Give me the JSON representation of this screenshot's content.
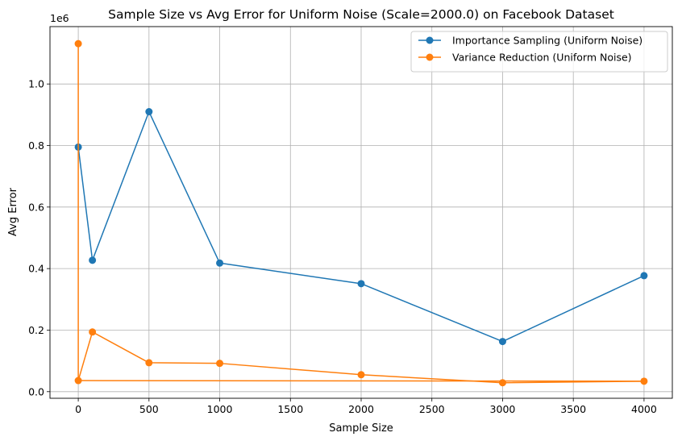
{
  "chart_data": {
    "type": "line",
    "title": "Sample Size vs Avg Error for Uniform Noise (Scale=2000.0) on Facebook Dataset",
    "xlabel": "Sample Size",
    "ylabel": "Avg Error",
    "y_offset_label": "1e6",
    "xlim": [
      -200,
      4200
    ],
    "ylim": [
      -0.0215,
      1.1865
    ],
    "x_ticks": [
      0,
      500,
      1000,
      1500,
      2000,
      2500,
      3000,
      3500,
      4000
    ],
    "x_tick_labels": [
      "0",
      "500",
      "1000",
      "1500",
      "2000",
      "2500",
      "3000",
      "3500",
      "4000"
    ],
    "y_ticks": [
      0.0,
      0.2,
      0.4,
      0.6,
      0.8,
      1.0
    ],
    "y_tick_labels": [
      "0.0",
      "0.2",
      "0.4",
      "0.6",
      "0.8",
      "1.0"
    ],
    "grid": true,
    "legend_position": "top-right",
    "series": [
      {
        "name": "Importance Sampling (Uniform Noise)",
        "color": "#1f77b4",
        "marker": "circle",
        "x": [
          0,
          100,
          500,
          1000,
          2000,
          3000,
          4000
        ],
        "y": [
          0.795,
          0.427,
          0.91,
          0.418,
          0.351,
          0.163,
          0.377
        ]
      },
      {
        "name": "Variance Reduction (Uniform Noise)",
        "color": "#ff7f0e",
        "marker": "circle",
        "x": [
          0,
          0,
          100,
          500,
          1000,
          2000,
          3000,
          4000
        ],
        "y": [
          1.131,
          0.036,
          0.194,
          0.094,
          0.092,
          0.055,
          0.029,
          0.034
        ]
      }
    ],
    "extra_segments": [
      {
        "color": "#ff7f0e",
        "x": [
          0,
          4000
        ],
        "y": [
          0.036,
          0.034
        ]
      }
    ]
  }
}
